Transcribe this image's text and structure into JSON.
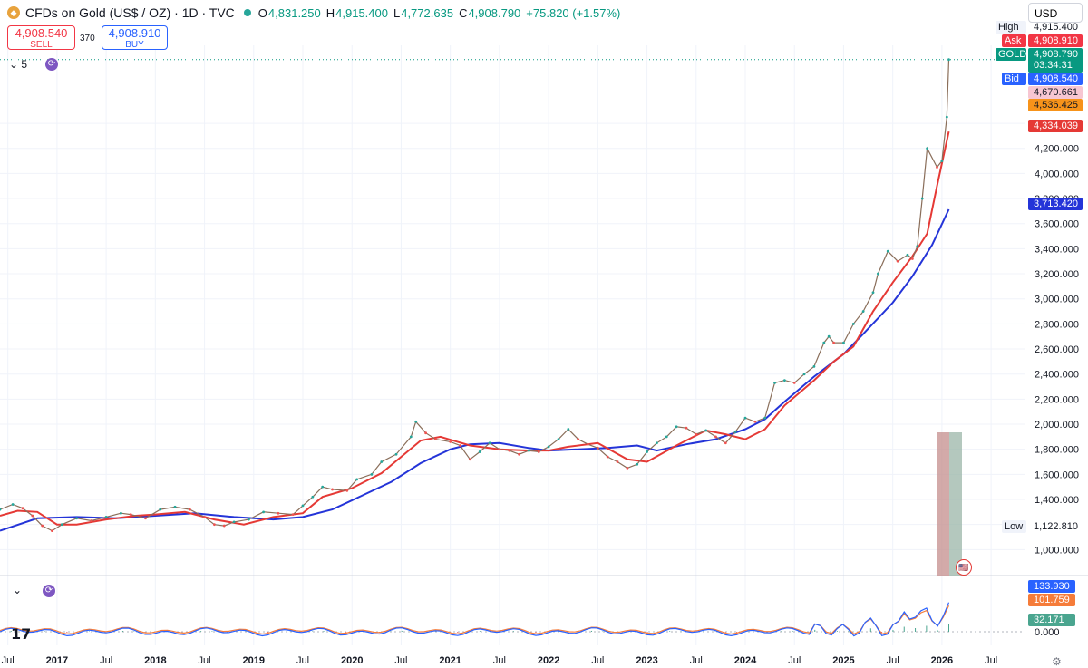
{
  "header": {
    "title": "CFDs on Gold (US$ / OZ) · 1D · TVC",
    "open_label": "O",
    "open": "4,831.250",
    "high_label": "H",
    "high": "4,915.400",
    "low_label": "L",
    "low": "4,772.635",
    "close_label": "C",
    "close": "4,908.790",
    "change": "+75.820 (+1.57%)"
  },
  "trade": {
    "sell_price": "4,908.540",
    "sell_label": "SELL",
    "spread": "370",
    "buy_price": "4,908.910",
    "buy_label": "BUY"
  },
  "controls": {
    "collapse_count": "5",
    "currency": "USD"
  },
  "price_labels": [
    {
      "tag": "High",
      "value": "4,915.400",
      "bg": "#ffffff",
      "fg": "#131722"
    },
    {
      "tag": "Ask",
      "value": "4,908.910",
      "bg": "#f23645",
      "fg": "#ffffff"
    },
    {
      "tag": "GOLD",
      "value": "4,908.790",
      "extra": "03:34:31",
      "bg": "#089981",
      "fg": "#ffffff"
    },
    {
      "tag": "Bid",
      "value": "4,908.540",
      "bg": "#2962ff",
      "fg": "#ffffff"
    },
    {
      "tag": "",
      "value": "4,670.661",
      "bg": "#f7c6d2",
      "fg": "#131722"
    },
    {
      "tag": "",
      "value": "4,536.425",
      "bg": "#f7931a",
      "fg": "#131722"
    },
    {
      "tag": "",
      "value": "4,334.039",
      "bg": "#e53935",
      "fg": "#ffffff"
    },
    {
      "tag": "",
      "value": "3,713.420",
      "bg": "#2434d8",
      "fg": "#ffffff"
    },
    {
      "tag": "Low",
      "value": "1,122.810",
      "bg": "#ffffff",
      "fg": "#131722"
    }
  ],
  "osc_labels": [
    {
      "value": "133.930",
      "bg": "#2962ff",
      "fg": "#ffffff"
    },
    {
      "value": "101.759",
      "bg": "#f57c3a",
      "fg": "#ffffff"
    },
    {
      "value": "32.171",
      "bg": "#4aa58f",
      "fg": "#ffffff"
    }
  ],
  "colors": {
    "fast_ma": "#e53935",
    "slow_ma": "#2434d8",
    "up": "#26a69a",
    "down": "#ef5350",
    "grid": "#f0f3fa"
  },
  "chart_data": {
    "type": "line",
    "title": "CFDs on Gold (US$ / OZ) · 1D · TVC",
    "y_ticks": [
      "1,000.000",
      "1,200.000",
      "1,400.000",
      "1,600.000",
      "1,800.000",
      "2,000.000",
      "2,200.000",
      "2,400.000",
      "2,600.000",
      "2,800.000",
      "3,000.000",
      "3,200.000",
      "3,400.000",
      "3,600.000",
      "3,800.000",
      "4,000.000",
      "4,200.000",
      "4,400.000"
    ],
    "y_tick_values": [
      1000,
      1200,
      1400,
      1600,
      1800,
      2000,
      2200,
      2400,
      2600,
      2800,
      3000,
      3200,
      3400,
      3600,
      3800,
      4000,
      4200,
      4400
    ],
    "ylim": [
      800,
      4950
    ],
    "x_tick_labels": [
      "Jul",
      "2017",
      "Jul",
      "2018",
      "Jul",
      "2019",
      "Jul",
      "2020",
      "Jul",
      "2021",
      "Jul",
      "2022",
      "Jul",
      "2023",
      "Jul",
      "2024",
      "Jul",
      "2025",
      "Jul",
      "2026",
      "Jul"
    ],
    "x_tick_times": [
      2016.5,
      2017,
      2017.5,
      2018,
      2018.5,
      2019,
      2019.5,
      2020,
      2020.5,
      2021,
      2021.5,
      2022,
      2022.5,
      2023,
      2023.5,
      2024,
      2024.5,
      2025,
      2025.5,
      2026,
      2026.5
    ],
    "xlim": [
      2016.42,
      2026.84
    ],
    "osc_y_ticks": [
      "0.000"
    ],
    "series": [
      {
        "kind": "price",
        "x": [
          2016.42,
          2016.55,
          2016.65,
          2016.75,
          2016.85,
          2016.95,
          2017.05,
          2017.2,
          2017.35,
          2017.5,
          2017.65,
          2017.75,
          2017.9,
          2018.05,
          2018.2,
          2018.35,
          2018.5,
          2018.6,
          2018.7,
          2018.8,
          2018.95,
          2019.1,
          2019.25,
          2019.4,
          2019.5,
          2019.6,
          2019.7,
          2019.8,
          2019.95,
          2020.05,
          2020.2,
          2020.3,
          2020.45,
          2020.6,
          2020.65,
          2020.75,
          2020.85,
          2021.0,
          2021.1,
          2021.2,
          2021.3,
          2021.4,
          2021.5,
          2021.6,
          2021.7,
          2021.8,
          2021.9,
          2022.0,
          2022.1,
          2022.2,
          2022.3,
          2022.4,
          2022.5,
          2022.6,
          2022.7,
          2022.8,
          2022.9,
          2023.0,
          2023.1,
          2023.2,
          2023.3,
          2023.4,
          2023.5,
          2023.6,
          2023.7,
          2023.8,
          2023.9,
          2024.0,
          2024.1,
          2024.2,
          2024.3,
          2024.4,
          2024.5,
          2024.6,
          2024.7,
          2024.8,
          2024.85,
          2024.9,
          2025.0,
          2025.1,
          2025.2,
          2025.3,
          2025.35,
          2025.45,
          2025.55,
          2025.65,
          2025.7,
          2025.75,
          2025.8,
          2025.85,
          2025.95,
          2026.0,
          2026.05,
          2026.07
        ],
        "y": [
          1320,
          1360,
          1330,
          1270,
          1190,
          1150,
          1200,
          1250,
          1230,
          1260,
          1290,
          1280,
          1250,
          1320,
          1340,
          1320,
          1260,
          1200,
          1190,
          1220,
          1240,
          1300,
          1290,
          1280,
          1350,
          1420,
          1500,
          1480,
          1470,
          1560,
          1600,
          1700,
          1760,
          1900,
          2020,
          1930,
          1880,
          1860,
          1830,
          1720,
          1780,
          1850,
          1800,
          1790,
          1760,
          1790,
          1780,
          1820,
          1880,
          1960,
          1880,
          1840,
          1810,
          1740,
          1700,
          1650,
          1680,
          1780,
          1850,
          1900,
          1980,
          1970,
          1920,
          1950,
          1900,
          1850,
          1940,
          2050,
          2020,
          2050,
          2330,
          2350,
          2330,
          2400,
          2460,
          2650,
          2700,
          2650,
          2650,
          2800,
          2900,
          3050,
          3200,
          3380,
          3300,
          3350,
          3320,
          3420,
          3800,
          4200,
          4050,
          4100,
          4450,
          4908.79
        ]
      },
      {
        "kind": "fast_ma",
        "x": [
          2016.42,
          2016.6,
          2016.8,
          2017.0,
          2017.2,
          2017.5,
          2017.8,
          2018.0,
          2018.3,
          2018.6,
          2018.9,
          2019.2,
          2019.5,
          2019.7,
          2020.0,
          2020.3,
          2020.5,
          2020.7,
          2020.9,
          2021.2,
          2021.5,
          2021.8,
          2022.0,
          2022.2,
          2022.5,
          2022.8,
          2023.0,
          2023.3,
          2023.6,
          2023.8,
          2024.0,
          2024.2,
          2024.4,
          2024.7,
          2024.9,
          2025.1,
          2025.3,
          2025.5,
          2025.7,
          2025.85,
          2025.95,
          2026.07
        ],
        "y": [
          1270,
          1310,
          1300,
          1200,
          1200,
          1240,
          1270,
          1280,
          1300,
          1240,
          1200,
          1260,
          1290,
          1420,
          1490,
          1610,
          1740,
          1870,
          1900,
          1830,
          1800,
          1790,
          1790,
          1820,
          1850,
          1720,
          1700,
          1830,
          1950,
          1920,
          1880,
          1960,
          2150,
          2350,
          2500,
          2620,
          2900,
          3130,
          3340,
          3520,
          3900,
          4334.039
        ]
      },
      {
        "kind": "slow_ma",
        "x": [
          2016.42,
          2016.8,
          2017.2,
          2017.6,
          2018.0,
          2018.4,
          2018.8,
          2019.2,
          2019.5,
          2019.8,
          2020.1,
          2020.4,
          2020.7,
          2021.0,
          2021.2,
          2021.5,
          2021.8,
          2022.0,
          2022.3,
          2022.6,
          2022.9,
          2023.1,
          2023.4,
          2023.7,
          2024.0,
          2024.2,
          2024.4,
          2024.7,
          2025.0,
          2025.2,
          2025.5,
          2025.7,
          2025.9,
          2026.07
        ],
        "y": [
          1150,
          1250,
          1260,
          1250,
          1270,
          1290,
          1260,
          1240,
          1260,
          1320,
          1430,
          1540,
          1690,
          1800,
          1840,
          1850,
          1810,
          1790,
          1800,
          1810,
          1830,
          1790,
          1840,
          1880,
          1960,
          2040,
          2180,
          2380,
          2560,
          2720,
          2970,
          3180,
          3430,
          3713.42
        ]
      }
    ]
  }
}
